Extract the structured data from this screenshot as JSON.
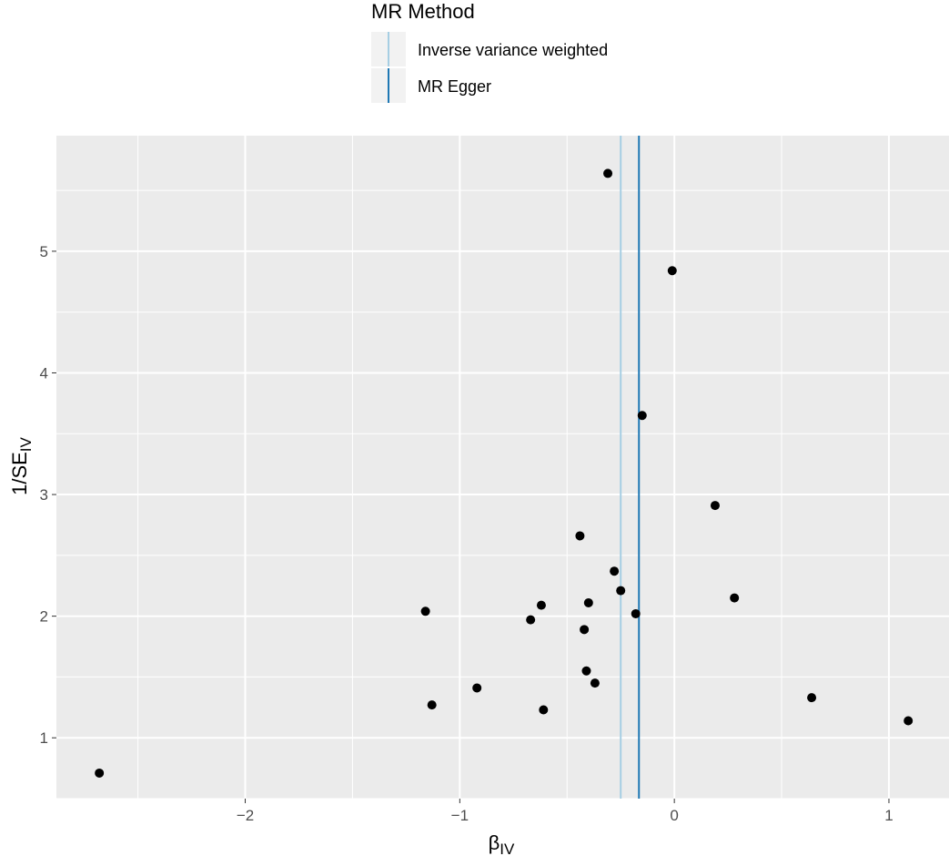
{
  "legend": {
    "title": "MR Method",
    "items": [
      {
        "label": "Inverse variance weighted",
        "color": "#a6cee3"
      },
      {
        "label": "MR Egger",
        "color": "#1f78b4"
      }
    ]
  },
  "chart_data": {
    "type": "scatter",
    "xlabel": "β",
    "xlabel_sub": "IV",
    "ylabel": "1/SE",
    "ylabel_sub": "IV",
    "xlim": [
      -2.88,
      1.28
    ],
    "ylim": [
      0.5,
      5.95
    ],
    "x_ticks": [
      -2,
      -1,
      0,
      1
    ],
    "x_tick_labels": [
      "−2",
      "−1",
      "0",
      "1"
    ],
    "y_ticks": [
      1,
      2,
      3,
      4,
      5
    ],
    "y_tick_labels": [
      "1",
      "2",
      "3",
      "4",
      "5"
    ],
    "grid": true,
    "legend_position": "top",
    "panel_color": "#ebebeb",
    "point_color": "#000000",
    "vlines": [
      {
        "method": "Inverse variance weighted",
        "x": -0.25,
        "color": "#a6cee3"
      },
      {
        "method": "MR Egger",
        "x": -0.165,
        "color": "#1f78b4"
      }
    ],
    "points": [
      {
        "x": -2.68,
        "y": 0.71
      },
      {
        "x": -1.16,
        "y": 2.04
      },
      {
        "x": -1.13,
        "y": 1.27
      },
      {
        "x": -0.92,
        "y": 1.41
      },
      {
        "x": -0.67,
        "y": 1.97
      },
      {
        "x": -0.62,
        "y": 2.09
      },
      {
        "x": -0.61,
        "y": 1.23
      },
      {
        "x": -0.44,
        "y": 2.66
      },
      {
        "x": -0.42,
        "y": 1.89
      },
      {
        "x": -0.41,
        "y": 1.55
      },
      {
        "x": -0.4,
        "y": 2.11
      },
      {
        "x": -0.37,
        "y": 1.45
      },
      {
        "x": -0.31,
        "y": 5.64
      },
      {
        "x": -0.28,
        "y": 2.37
      },
      {
        "x": -0.25,
        "y": 2.21
      },
      {
        "x": -0.18,
        "y": 2.02
      },
      {
        "x": -0.15,
        "y": 3.65
      },
      {
        "x": -0.01,
        "y": 4.84
      },
      {
        "x": 0.19,
        "y": 2.91
      },
      {
        "x": 0.28,
        "y": 2.15
      },
      {
        "x": 0.64,
        "y": 1.33
      },
      {
        "x": 1.09,
        "y": 1.14
      }
    ]
  }
}
